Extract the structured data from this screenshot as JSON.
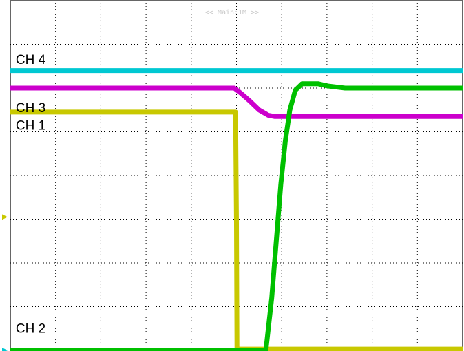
{
  "chart_data": {
    "type": "line",
    "timebase_label": "<< Main:1M >>",
    "divisions": {
      "x": 10,
      "y": 8
    },
    "xlim": [
      0,
      10
    ],
    "ylim": [
      0,
      8
    ],
    "grid": true,
    "series": [
      {
        "name": "CH 4",
        "color": "#00c8d2",
        "label_pos": [
          0.12,
          6.55
        ],
        "points": [
          [
            0,
            6.4
          ],
          [
            10,
            6.4
          ]
        ]
      },
      {
        "name": "CH 3",
        "color": "#cc00cc",
        "label_pos": [
          0.12,
          5.45
        ],
        "points": [
          [
            0,
            6.0
          ],
          [
            4.95,
            6.0
          ],
          [
            5.1,
            5.88
          ],
          [
            5.3,
            5.7
          ],
          [
            5.5,
            5.5
          ],
          [
            5.7,
            5.38
          ],
          [
            5.85,
            5.35
          ],
          [
            10,
            5.35
          ]
        ]
      },
      {
        "name": "CH 1",
        "color": "#c8c800",
        "label_pos": [
          0.12,
          5.05
        ],
        "points": [
          [
            0,
            5.45
          ],
          [
            4.98,
            5.45
          ],
          [
            5.0,
            2.9
          ],
          [
            5.01,
            0.03
          ],
          [
            10,
            0.03
          ]
        ]
      },
      {
        "name": "CH 2",
        "color": "#00c000",
        "label_pos": [
          0.12,
          0.4
        ],
        "points": [
          [
            0,
            0
          ],
          [
            5.65,
            0
          ],
          [
            5.78,
            1.2
          ],
          [
            5.88,
            2.5
          ],
          [
            5.98,
            3.8
          ],
          [
            6.08,
            4.8
          ],
          [
            6.18,
            5.5
          ],
          [
            6.3,
            5.95
          ],
          [
            6.45,
            6.1
          ],
          [
            6.8,
            6.1
          ],
          [
            7.0,
            6.05
          ],
          [
            7.4,
            6.0
          ],
          [
            8.0,
            6.0
          ],
          [
            10,
            6.0
          ]
        ]
      }
    ],
    "ground_markers": [
      {
        "channel": "CH 1",
        "color": "#c8c800",
        "level": 3.05
      },
      {
        "channel": "CH 2",
        "color": "#00c8d2",
        "level": 0.0
      }
    ]
  }
}
